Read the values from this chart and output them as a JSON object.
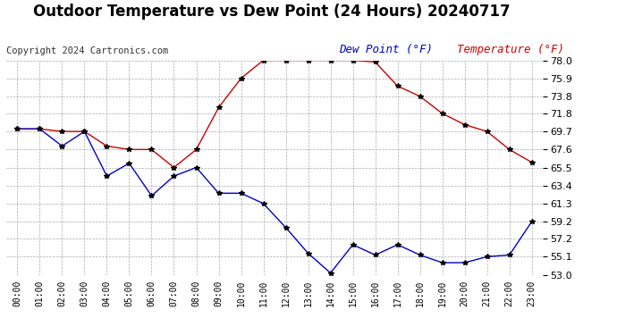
{
  "title": "Outdoor Temperature vs Dew Point (24 Hours) 20240717",
  "copyright": "Copyright 2024 Cartronics.com",
  "legend_dew": "Dew Point (°F)",
  "legend_temp": "Temperature (°F)",
  "x_labels": [
    "00:00",
    "01:00",
    "02:00",
    "03:00",
    "04:00",
    "05:00",
    "06:00",
    "07:00",
    "08:00",
    "09:00",
    "10:00",
    "11:00",
    "12:00",
    "13:00",
    "14:00",
    "15:00",
    "16:00",
    "17:00",
    "18:00",
    "19:00",
    "20:00",
    "21:00",
    "22:00",
    "23:00"
  ],
  "temperature": [
    70.0,
    70.0,
    69.7,
    69.7,
    68.0,
    67.6,
    67.6,
    65.5,
    67.6,
    72.5,
    75.9,
    78.0,
    78.0,
    78.0,
    78.0,
    78.0,
    77.8,
    75.0,
    73.8,
    71.8,
    70.5,
    69.7,
    67.6,
    66.1
  ],
  "dew_point": [
    70.0,
    70.0,
    68.0,
    69.7,
    64.5,
    66.0,
    62.2,
    64.5,
    65.5,
    62.5,
    62.5,
    61.3,
    58.5,
    55.5,
    53.2,
    56.5,
    55.3,
    56.5,
    55.3,
    54.4,
    54.4,
    55.1,
    55.3,
    59.2
  ],
  "ylim": [
    53.0,
    78.0
  ],
  "yticks": [
    53.0,
    55.1,
    57.2,
    59.2,
    61.3,
    63.4,
    65.5,
    67.6,
    69.7,
    71.8,
    73.8,
    75.9,
    78.0
  ],
  "temp_color": "#cc0000",
  "dew_color": "#0000cc",
  "marker_color": "#000000",
  "bg_color": "#ffffff",
  "grid_color": "#aaaaaa",
  "title_fontsize": 12,
  "copyright_fontsize": 7.5,
  "legend_fontsize": 9
}
